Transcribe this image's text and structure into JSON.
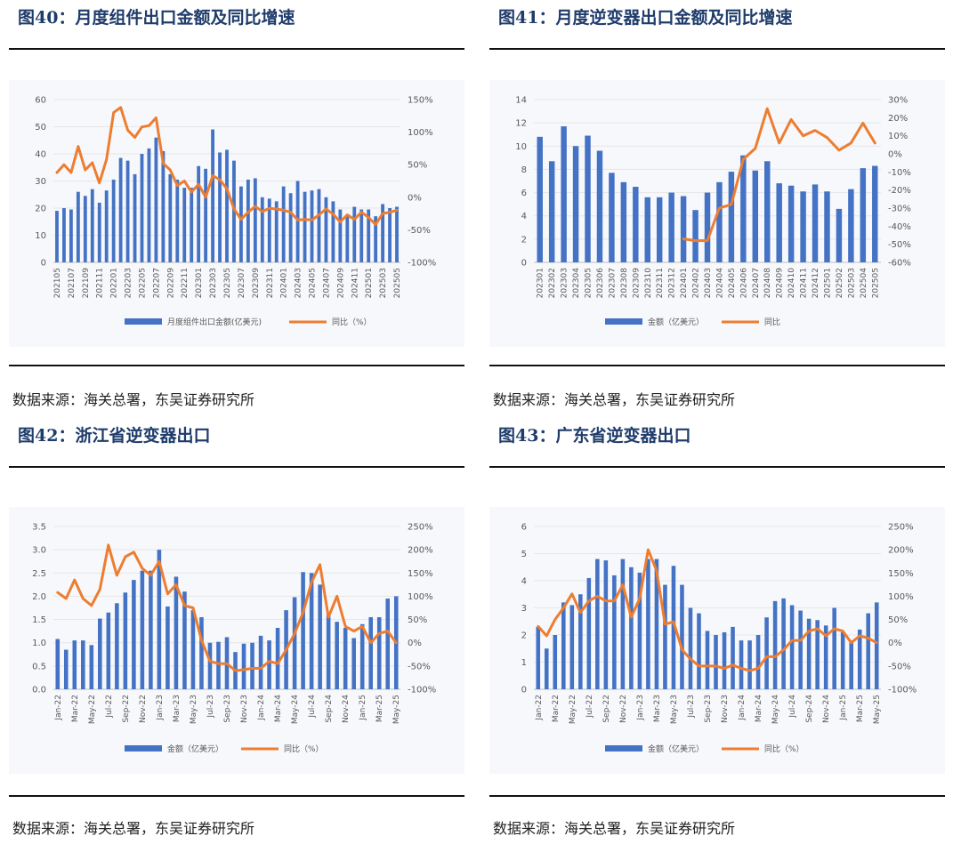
{
  "colors": {
    "bar": "#4472c4",
    "line": "#ed7d31",
    "title": "#1f3c6b",
    "axis_text": "#595959",
    "grid": "#e6e6e6",
    "chart_bg": "#f7f8fb"
  },
  "panels": [
    {
      "title": "图40：月度组件出口金额及同比增速",
      "source": "数据来源：海关总署，东吴证券研究所",
      "chart_data": {
        "type": "bar+line",
        "categories": [
          "202105",
          "202106",
          "202107",
          "202108",
          "202109",
          "202110",
          "202111",
          "202112",
          "202201",
          "202202",
          "202203",
          "202204",
          "202205",
          "202206",
          "202207",
          "202208",
          "202209",
          "202210",
          "202211",
          "202212",
          "202301",
          "202302",
          "202303",
          "202304",
          "202305",
          "202306",
          "202307",
          "202308",
          "202309",
          "202310",
          "202311",
          "202312",
          "202401",
          "202402",
          "202403",
          "202404",
          "202405",
          "202406",
          "202407",
          "202408",
          "202409",
          "202410",
          "202411",
          "202412",
          "202501",
          "202502",
          "202503",
          "202504",
          "202505"
        ],
        "tick_labels": [
          "202105",
          "202107",
          "202109",
          "202111",
          "202201",
          "202203",
          "202205",
          "202207",
          "202209",
          "202211",
          "202301",
          "202303",
          "202305",
          "202307",
          "202309",
          "202311",
          "202401",
          "202403",
          "202405",
          "202407",
          "202409",
          "202411",
          "202501",
          "202503",
          "202505"
        ],
        "series": [
          {
            "name": "月度组件出口金额(亿美元)",
            "axis": "left",
            "kind": "bar",
            "values": [
              19,
              20,
              19.5,
              26,
              24.5,
              27,
              22,
              26.5,
              30.5,
              38.5,
              37.5,
              32.5,
              40,
              42,
              46,
              41,
              32.5,
              30.5,
              27.5,
              27.5,
              35.5,
              34.5,
              49,
              40.5,
              41.5,
              37.5,
              28,
              30.5,
              31,
              24,
              23.5,
              22.5,
              28,
              25.5,
              30,
              26,
              26.5,
              27,
              24,
              22.5,
              19.5,
              17.5,
              20.5,
              19.5,
              19.5,
              17,
              21.5,
              20,
              20.5
            ]
          },
          {
            "name": "同比（%）",
            "axis": "right",
            "kind": "line",
            "values": [
              38,
              50,
              38,
              78,
              42,
              53,
              22,
              58,
              130,
              138,
              103,
              92,
              108,
              110,
              122,
              52,
              42,
              18,
              25,
              8,
              20,
              0,
              33,
              27,
              13,
              -18,
              -34,
              -23,
              -14,
              -22,
              -17,
              -18,
              -20,
              -23,
              -35,
              -34,
              -35,
              -27,
              -18,
              -26,
              -38,
              -27,
              -34,
              -23,
              -31,
              -42,
              -25,
              -23,
              -20
            ]
          }
        ],
        "y_left": {
          "min": 0,
          "max": 60,
          "step": 10
        },
        "y_right": {
          "min": -100,
          "max": 150,
          "step": 50,
          "unit": "%"
        }
      }
    },
    {
      "title": "图41：月度逆变器出口金额及同比增速",
      "source": "数据来源：海关总署，东吴证券研究所",
      "chart_data": {
        "type": "bar+line",
        "categories": [
          "202301",
          "202302",
          "202303",
          "202304",
          "202305",
          "202306",
          "202307",
          "202308",
          "202309",
          "202310",
          "202311",
          "202312",
          "202401",
          "202402",
          "202403",
          "202404",
          "202405",
          "202406",
          "202407",
          "202408",
          "202409",
          "202410",
          "202411",
          "202412",
          "202501",
          "202502",
          "202503",
          "202504",
          "202505"
        ],
        "tick_labels": [
          "202301",
          "202302",
          "202303",
          "202304",
          "202305",
          "202306",
          "202307",
          "202308",
          "202309",
          "202310",
          "202311",
          "202312",
          "202401",
          "202402",
          "202403",
          "202404",
          "202405",
          "202406",
          "202407",
          "202408",
          "202409",
          "202410",
          "202411",
          "202412",
          "202501",
          "202502",
          "202503",
          "202504",
          "202505"
        ],
        "series": [
          {
            "name": "金额（亿美元）",
            "axis": "left",
            "kind": "bar",
            "values": [
              10.8,
              8.7,
              11.7,
              10,
              10.9,
              9.6,
              7.7,
              6.9,
              6.5,
              5.6,
              5.6,
              6,
              5.7,
              4.5,
              6,
              6.9,
              7.8,
              9.2,
              7.9,
              8.7,
              6.8,
              6.6,
              6.1,
              6.7,
              6.1,
              4.6,
              6.3,
              8.1,
              8.3
            ]
          },
          {
            "name": "同比",
            "axis": "right",
            "kind": "line",
            "values": [
              null,
              null,
              null,
              null,
              null,
              null,
              null,
              null,
              null,
              null,
              null,
              null,
              -47,
              -48,
              -48,
              -30,
              -28,
              -3,
              3,
              25,
              6,
              19,
              10,
              13,
              9,
              2,
              6,
              17,
              6
            ]
          }
        ],
        "y_left": {
          "min": 0,
          "max": 14,
          "step": 2
        },
        "y_right": {
          "min": -60,
          "max": 30,
          "step": 10,
          "unit": "%"
        }
      }
    },
    {
      "title": "图42：浙江省逆变器出口",
      "source": "数据来源：海关总署，东吴证券研究所",
      "chart_data": {
        "type": "bar+line",
        "categories": [
          "Jan-22",
          "Feb-22",
          "Mar-22",
          "Apr-22",
          "May-22",
          "Jun-22",
          "Jul-22",
          "Aug-22",
          "Sep-22",
          "Oct-22",
          "Nov-22",
          "Dec-22",
          "Jan-23",
          "Feb-23",
          "Mar-23",
          "Apr-23",
          "May-23",
          "Jun-23",
          "Jul-23",
          "Aug-23",
          "Sep-23",
          "Oct-23",
          "Nov-23",
          "Dec-23",
          "Jan-24",
          "Feb-24",
          "Mar-24",
          "Apr-24",
          "May-24",
          "Jun-24",
          "Jul-24",
          "Aug-24",
          "Sep-24",
          "Oct-24",
          "Nov-24",
          "Dec-24",
          "Jan-25",
          "Feb-25",
          "Mar-25",
          "Apr-25",
          "May-25"
        ],
        "tick_labels": [
          "Jan-22",
          "Mar-22",
          "May-22",
          "Jul-22",
          "Sep-22",
          "Nov-22",
          "Jan-23",
          "Mar-23",
          "May-23",
          "Jul-23",
          "Sep-23",
          "Nov-23",
          "Jan-24",
          "Mar-24",
          "May-24",
          "Jul-24",
          "Sep-24",
          "Nov-24",
          "Jan-25",
          "Mar-25",
          "May-25"
        ],
        "series": [
          {
            "name": "金额（亿美元）",
            "axis": "left",
            "kind": "bar",
            "values": [
              1.08,
              0.85,
              1.05,
              1.05,
              0.95,
              1.52,
              1.65,
              1.85,
              2.08,
              2.35,
              2.55,
              2.55,
              3.0,
              1.78,
              2.42,
              2.1,
              1.7,
              1.55,
              1.0,
              1.02,
              1.12,
              0.8,
              0.98,
              1.0,
              1.15,
              1.05,
              1.32,
              1.7,
              1.98,
              2.52,
              2.5,
              2.25,
              1.62,
              1.45,
              1.32,
              1.1,
              1.4,
              1.55,
              1.55,
              1.95,
              2.0
            ]
          },
          {
            "name": "同比（%）",
            "axis": "right",
            "kind": "line",
            "values": [
              108,
              95,
              135,
              95,
              80,
              115,
              210,
              145,
              185,
              195,
              160,
              145,
              175,
              105,
              125,
              80,
              75,
              5,
              -40,
              -45,
              -45,
              -60,
              -58,
              -55,
              -55,
              -40,
              -45,
              -15,
              20,
              65,
              130,
              168,
              55,
              100,
              35,
              25,
              35,
              0,
              20,
              25,
              0
            ]
          }
        ],
        "y_left": {
          "min": 0,
          "max": 3.5,
          "step": 0.5
        },
        "y_right": {
          "min": -100,
          "max": 250,
          "step": 50,
          "unit": "%"
        }
      }
    },
    {
      "title": "图43：广东省逆变器出口",
      "source": "数据来源：海关总署，东吴证券研究所",
      "chart_data": {
        "type": "bar+line",
        "categories": [
          "Jan-22",
          "Feb-22",
          "Mar-22",
          "Apr-22",
          "May-22",
          "Jun-22",
          "Jul-22",
          "Aug-22",
          "Sep-22",
          "Oct-22",
          "Nov-22",
          "Dec-22",
          "Jan-23",
          "Feb-23",
          "Mar-23",
          "Apr-23",
          "May-23",
          "Jun-23",
          "Jul-23",
          "Aug-23",
          "Sep-23",
          "Oct-23",
          "Nov-23",
          "Dec-23",
          "Jan-24",
          "Feb-24",
          "Mar-24",
          "Apr-24",
          "May-24",
          "Jun-24",
          "Jul-24",
          "Aug-24",
          "Sep-24",
          "Oct-24",
          "Nov-24",
          "Dec-24",
          "Jan-25",
          "Feb-25",
          "Mar-25",
          "Apr-25",
          "May-25"
        ],
        "tick_labels": [
          "Jan-22",
          "Mar-22",
          "May-22",
          "Jul-22",
          "Sep-22",
          "Nov-22",
          "Jan-23",
          "Mar-23",
          "May-23",
          "Jul-23",
          "Sep-23",
          "Nov-23",
          "Jan-24",
          "Mar-24",
          "May-24",
          "Jul-24",
          "Sep-24",
          "Nov-24",
          "Jan-25",
          "Mar-25",
          "May-25"
        ],
        "series": [
          {
            "name": "金额（亿美元）",
            "axis": "left",
            "kind": "bar",
            "values": [
              2.3,
              1.5,
              2.0,
              3.2,
              3.1,
              3.5,
              4.1,
              4.8,
              4.75,
              4.2,
              4.8,
              4.5,
              4.3,
              4.8,
              4.8,
              3.85,
              4.55,
              3.85,
              3.0,
              2.8,
              2.15,
              2.0,
              2.1,
              2.3,
              1.8,
              1.8,
              2.0,
              2.65,
              3.25,
              3.35,
              3.1,
              2.9,
              2.6,
              2.55,
              2.35,
              3.0,
              2.1,
              1.8,
              2.2,
              2.8,
              3.2
            ]
          },
          {
            "name": "同比（%）",
            "axis": "right",
            "kind": "line",
            "values": [
              35,
              15,
              50,
              75,
              105,
              65,
              90,
              100,
              90,
              90,
              125,
              55,
              95,
              200,
              155,
              40,
              45,
              -15,
              -35,
              -50,
              -50,
              -50,
              -55,
              -48,
              -55,
              -60,
              -55,
              -30,
              -30,
              -15,
              5,
              5,
              25,
              30,
              15,
              30,
              25,
              0,
              15,
              10,
              0
            ]
          }
        ],
        "y_left": {
          "min": 0,
          "max": 6,
          "step": 1
        },
        "y_right": {
          "min": -100,
          "max": 250,
          "step": 50,
          "unit": "%"
        }
      }
    }
  ]
}
